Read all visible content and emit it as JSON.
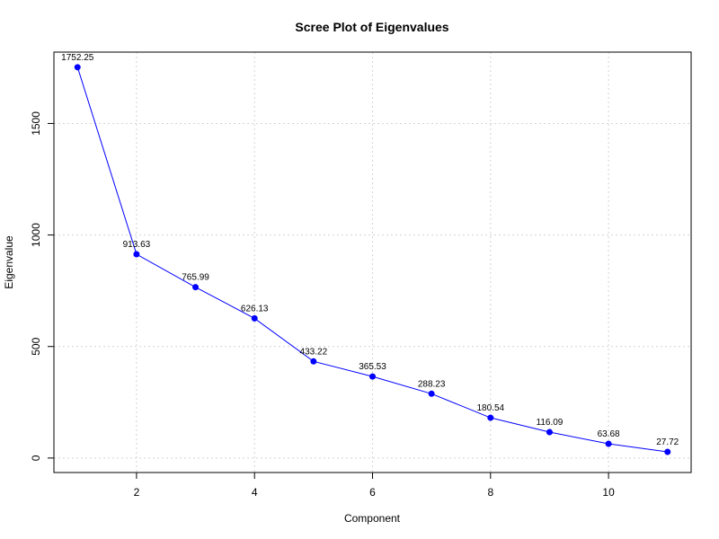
{
  "chart_data": {
    "type": "line",
    "title": "Scree Plot of Eigenvalues",
    "xlabel": "Component",
    "ylabel": "Eigenvalue",
    "x": [
      1,
      2,
      3,
      4,
      5,
      6,
      7,
      8,
      9,
      10,
      11
    ],
    "values": [
      1752.25,
      913.63,
      765.99,
      626.13,
      433.22,
      365.53,
      288.23,
      180.54,
      116.09,
      63.68,
      27.72
    ],
    "data_labels": [
      "1752.25",
      "913.63",
      "765.99",
      "626.13",
      "433.22",
      "365.53",
      "288.23",
      "180.54",
      "116.09",
      "63.68",
      "27.72"
    ],
    "x_ticks": [
      2,
      4,
      6,
      8,
      10
    ],
    "y_ticks": [
      0,
      500,
      1000,
      1500
    ],
    "xlim": [
      0.6,
      11.4
    ],
    "ylim": [
      -65,
      1820
    ],
    "grid": true,
    "line_color": "#0000ff",
    "point_color": "#0000ff"
  }
}
